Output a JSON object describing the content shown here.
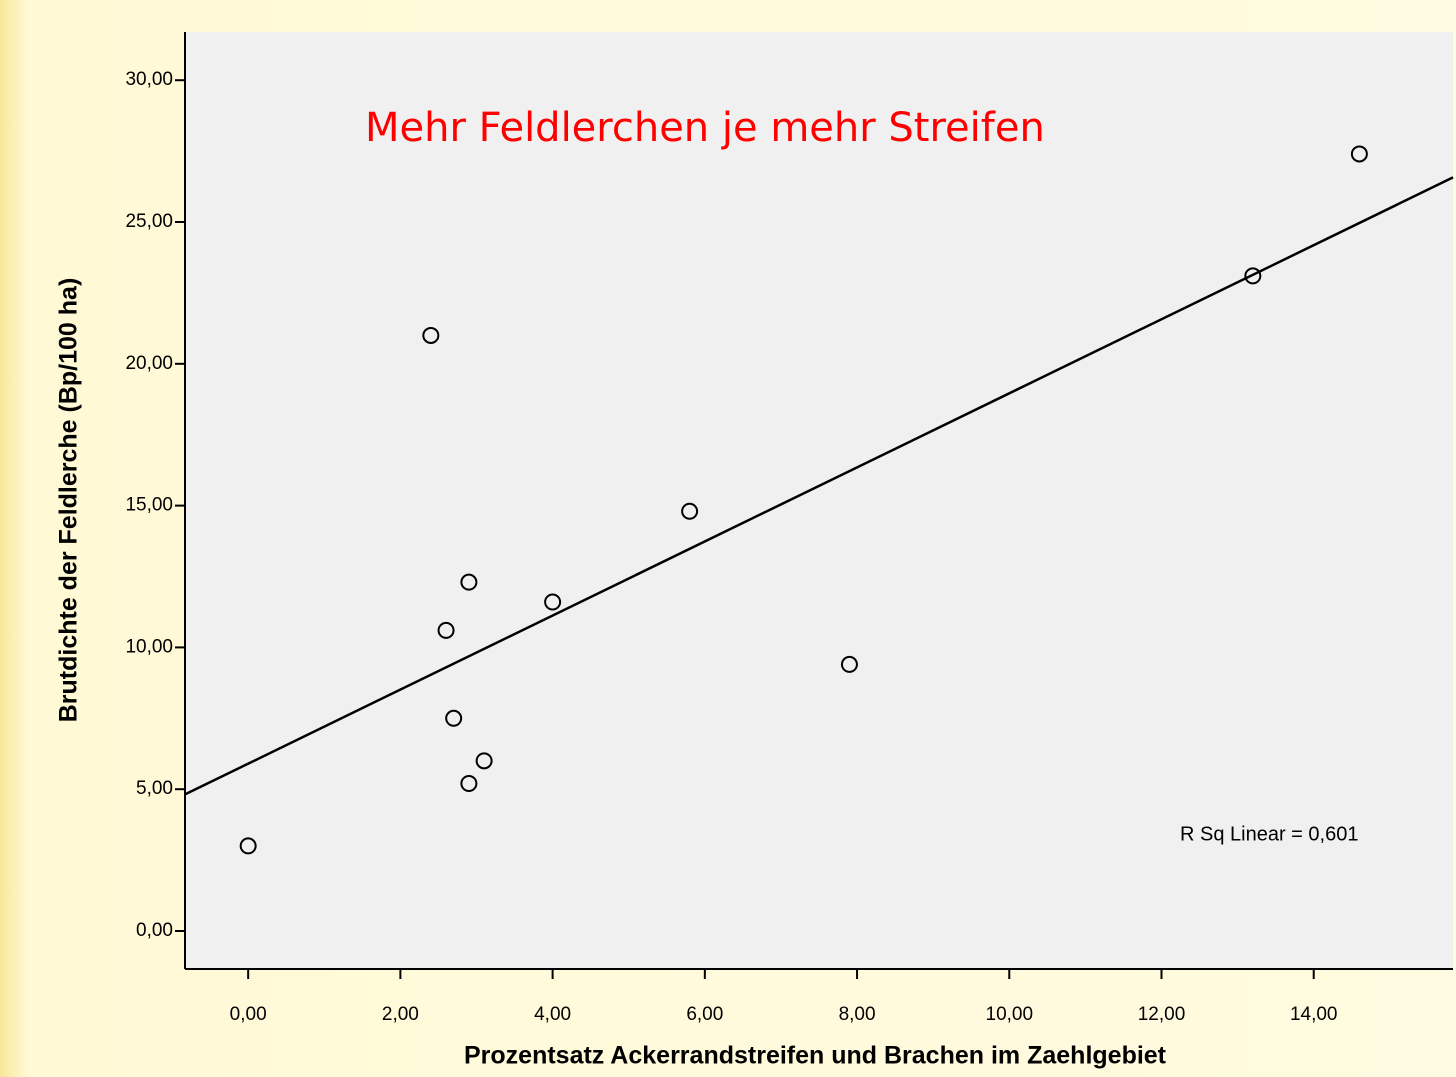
{
  "chart_data": {
    "type": "scatter",
    "annotation": "Mehr Feldlerchen je mehr Streifen",
    "fit_label": "R Sq Linear = 0,601",
    "xlabel": "Prozentsatz Ackerrandstreifen und Brachen im Zaehlgebiet",
    "ylabel": "Brutdichte der Feldlerche (Bp/100 ha)",
    "x": [
      0,
      2.4,
      2.6,
      2.9,
      2.7,
      3.1,
      2.9,
      4.0,
      5.8,
      7.9,
      13.2,
      14.6
    ],
    "values": [
      3.0,
      21.0,
      10.6,
      12.3,
      7.5,
      6.0,
      5.2,
      11.6,
      14.8,
      9.4,
      23.1,
      27.4
    ],
    "color": "#000000",
    "fit_line": true,
    "xlim": [
      -0.83,
      15.83
    ],
    "ylim": [
      -1.34,
      31.7
    ],
    "xticks": [
      {
        "value": 0,
        "label": "0,00"
      },
      {
        "value": 2,
        "label": "2,00"
      },
      {
        "value": 4,
        "label": "4,00"
      },
      {
        "value": 6,
        "label": "6,00"
      },
      {
        "value": 8,
        "label": "8,00"
      },
      {
        "value": 10,
        "label": "10,00"
      },
      {
        "value": 12,
        "label": "12,00"
      },
      {
        "value": 14,
        "label": "14,00"
      }
    ],
    "yticks": [
      {
        "value": 0,
        "label": "0,00"
      },
      {
        "value": 5,
        "label": "5,00"
      },
      {
        "value": 10,
        "label": "10,00"
      },
      {
        "value": 15,
        "label": "15,00"
      },
      {
        "value": 20,
        "label": "20,00"
      },
      {
        "value": 25,
        "label": "25,00"
      },
      {
        "value": 30,
        "label": "30,00"
      }
    ]
  }
}
